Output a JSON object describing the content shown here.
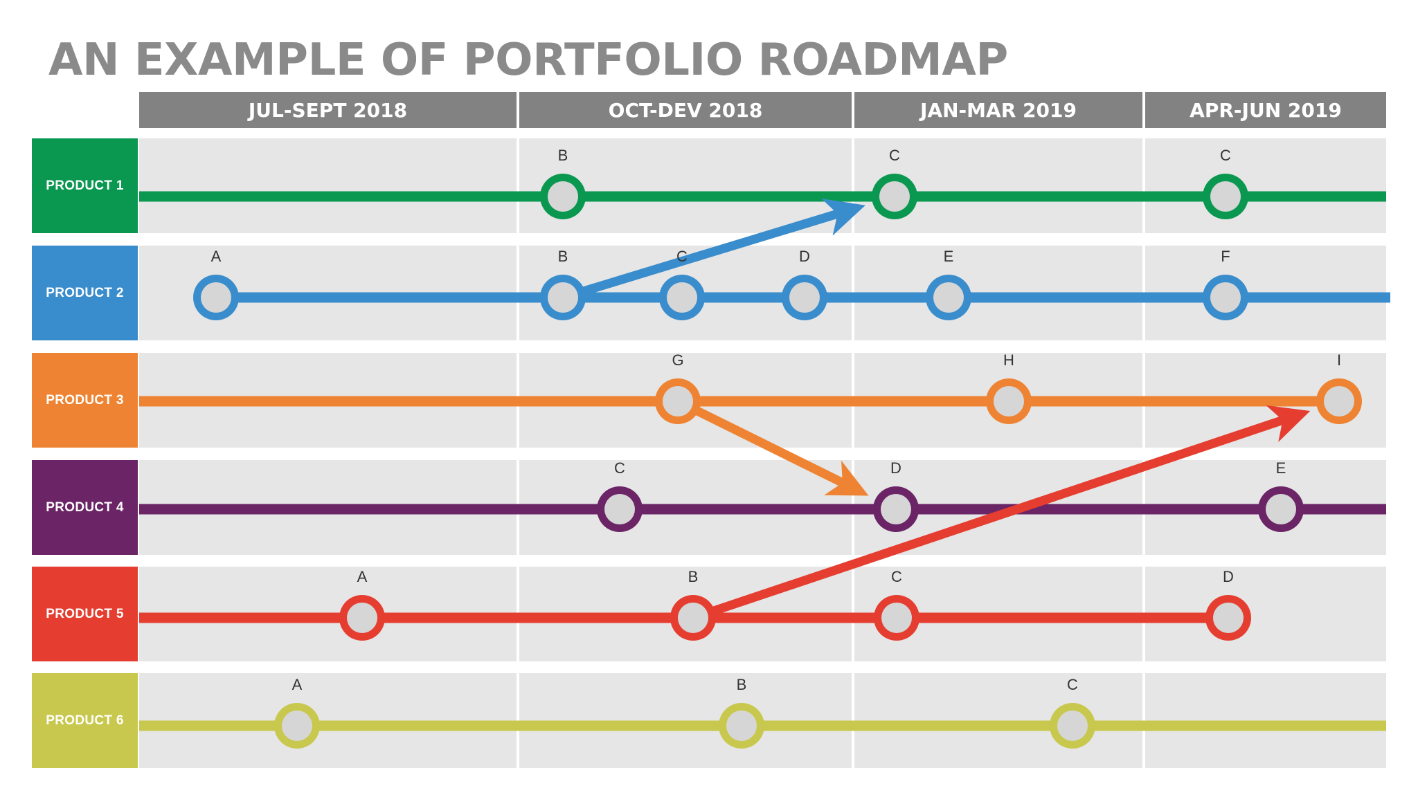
{
  "title": "AN EXAMPLE OF PORTFOLIO ROADMAP",
  "periods": [
    "JUL-SEPT 2018",
    "OCT-DEV 2018",
    "JAN-MAR 2019",
    "APR-JUN 2019"
  ],
  "products": [
    {
      "label": "PRODUCT 1",
      "color": "#0a9850",
      "milestones": [
        "B",
        "C",
        "C"
      ]
    },
    {
      "label": "PRODUCT 2",
      "color": "#3a8dcc",
      "milestones": [
        "A",
        "B",
        "C",
        "D",
        "E",
        "F"
      ]
    },
    {
      "label": "PRODUCT 3",
      "color": "#ee8433",
      "milestones": [
        "G",
        "H",
        "I"
      ]
    },
    {
      "label": "PRODUCT 4",
      "color": "#6b2466",
      "milestones": [
        "C",
        "D",
        "E"
      ]
    },
    {
      "label": "PRODUCT 5",
      "color": "#e53e31",
      "milestones": [
        "A",
        "B",
        "C",
        "D"
      ]
    },
    {
      "label": "PRODUCT 6",
      "color": "#c8c84e",
      "milestones": [
        "A",
        "B",
        "C"
      ]
    }
  ],
  "dependencies": [
    {
      "from": "PRODUCT 2 B",
      "to": "PRODUCT 1 C",
      "color": "#3a8dcc"
    },
    {
      "from": "PRODUCT 3 G",
      "to": "PRODUCT 4 D",
      "color": "#ee8433"
    },
    {
      "from": "PRODUCT 5 B",
      "to": "PRODUCT 3 I",
      "color": "#e53e31"
    }
  ]
}
